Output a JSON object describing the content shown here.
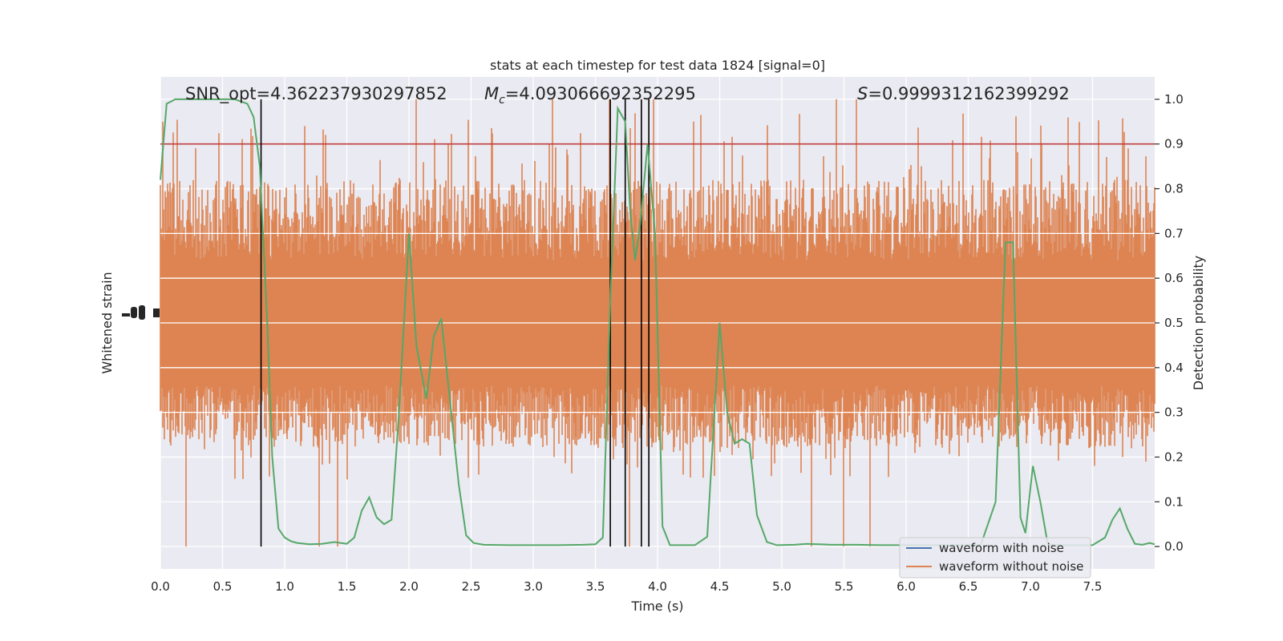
{
  "chart_data": {
    "type": "line",
    "title": "stats at each timestep for test data 1824 [signal=0]",
    "xlabel": "Time (s)",
    "ylabel_left": "Whitened strain",
    "ylabel_right": "Detection probability",
    "xlim": [
      0,
      8
    ],
    "ylim_right": [
      -0.05,
      1.05
    ],
    "x_ticks": [
      "0.0",
      "0.5",
      "1.0",
      "1.5",
      "2.0",
      "2.5",
      "3.0",
      "3.5",
      "4.0",
      "4.5",
      "5.0",
      "5.5",
      "6.0",
      "6.5",
      "7.0",
      "7.5"
    ],
    "x_tick_values": [
      0,
      0.5,
      1,
      1.5,
      2,
      2.5,
      3,
      3.5,
      4,
      4.5,
      5,
      5.5,
      6,
      6.5,
      7,
      7.5
    ],
    "y_ticks_right": [
      "0.0",
      "0.1",
      "0.2",
      "0.3",
      "0.4",
      "0.5",
      "0.6",
      "0.7",
      "0.8",
      "0.9",
      "1.0"
    ],
    "y_tick_values_right": [
      0,
      0.1,
      0.2,
      0.3,
      0.4,
      0.5,
      0.6,
      0.7,
      0.8,
      0.9,
      1.0
    ],
    "grid": true,
    "legend_position": "bottom-right",
    "annotations": {
      "snr_text": "SNR_opt=4.362237930297852",
      "mc_prefix": "M",
      "mc_sub": "c",
      "mc_text": "=4.093066692352295",
      "s_prefix": "S",
      "s_text": "=0.9999312162399292"
    },
    "threshold": {
      "value": 0.9,
      "color": "#c03d3e"
    },
    "vertical_lines": {
      "x": [
        0.81,
        3.62,
        3.74,
        3.87,
        3.93
      ],
      "color": "#000000"
    },
    "series": [
      {
        "name": "waveform with noise",
        "color": "#4c72b0",
        "values": []
      },
      {
        "name": "waveform without noise",
        "color": "#dd8452",
        "summary": "noise band spanning roughly 0.28 to 0.82 (right-axis scale) with spikes to ~0.0 and ~1.0"
      },
      {
        "color": "#55a868",
        "x": [
          0.0,
          0.05,
          0.12,
          0.2,
          0.3,
          0.45,
          0.6,
          0.7,
          0.75,
          0.8,
          0.86,
          0.9,
          0.95,
          1.0,
          1.05,
          1.1,
          1.2,
          1.3,
          1.4,
          1.5,
          1.56,
          1.62,
          1.68,
          1.74,
          1.8,
          1.86,
          1.92,
          2.0,
          2.06,
          2.14,
          2.2,
          2.26,
          2.34,
          2.4,
          2.46,
          2.52,
          2.6,
          2.8,
          3.0,
          3.2,
          3.4,
          3.5,
          3.56,
          3.62,
          3.68,
          3.74,
          3.78,
          3.82,
          3.86,
          3.92,
          3.98,
          4.04,
          4.1,
          4.2,
          4.3,
          4.4,
          4.5,
          4.56,
          4.62,
          4.68,
          4.74,
          4.8,
          4.88,
          4.96,
          5.1,
          5.2,
          5.3,
          5.4,
          5.6,
          5.8,
          6.0,
          6.2,
          6.4,
          6.6,
          6.72,
          6.8,
          6.86,
          6.92,
          6.96,
          7.02,
          7.08,
          7.14,
          7.2,
          7.3,
          7.5,
          7.6,
          7.66,
          7.72,
          7.78,
          7.84,
          7.9,
          7.96,
          8.0
        ],
        "values": [
          0.82,
          0.99,
          1.0,
          1.0,
          1.0,
          1.0,
          1.0,
          0.99,
          0.96,
          0.85,
          0.5,
          0.2,
          0.04,
          0.02,
          0.012,
          0.008,
          0.005,
          0.006,
          0.01,
          0.006,
          0.02,
          0.08,
          0.11,
          0.065,
          0.05,
          0.06,
          0.3,
          0.7,
          0.45,
          0.33,
          0.47,
          0.51,
          0.3,
          0.14,
          0.025,
          0.008,
          0.004,
          0.003,
          0.003,
          0.003,
          0.004,
          0.005,
          0.02,
          0.55,
          0.98,
          0.95,
          0.75,
          0.64,
          0.72,
          0.9,
          0.7,
          0.045,
          0.003,
          0.003,
          0.003,
          0.022,
          0.5,
          0.3,
          0.23,
          0.24,
          0.23,
          0.07,
          0.01,
          0.003,
          0.004,
          0.006,
          0.005,
          0.004,
          0.004,
          0.003,
          0.003,
          0.003,
          0.003,
          0.003,
          0.1,
          0.68,
          0.68,
          0.065,
          0.03,
          0.18,
          0.1,
          0.005,
          0.003,
          0.003,
          0.003,
          0.02,
          0.06,
          0.085,
          0.04,
          0.006,
          0.004,
          0.008,
          0.005
        ]
      }
    ]
  }
}
